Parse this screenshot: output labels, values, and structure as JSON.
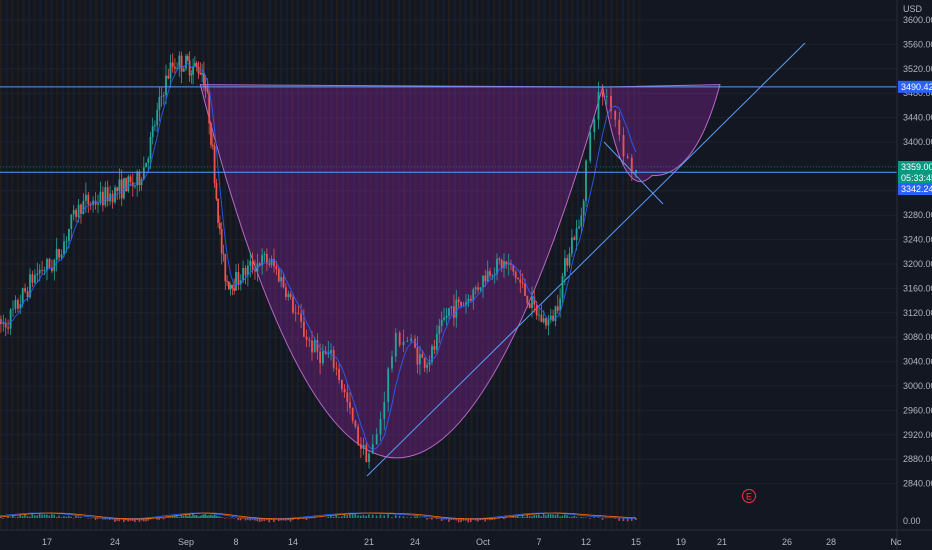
{
  "chart_data": {
    "type": "candlestick",
    "currency": "USD",
    "y_axis": {
      "ticks": [
        3600,
        3560,
        3520,
        3480,
        3440,
        3400,
        3360,
        3320,
        3280,
        3240,
        3200,
        3160,
        3120,
        3080,
        3040,
        3000,
        2960,
        2920,
        2880,
        2840
      ],
      "tick_labels": [
        "3600.00",
        "3560.00",
        "3520.00",
        "3480.00",
        "3440.00",
        "3400.00",
        "3360.00",
        "3320.00",
        "3280.00",
        "3240.00",
        "3200.00",
        "3160.00",
        "3120.00",
        "3080.00",
        "3040.00",
        "3000.00",
        "2960.00",
        "2920.00",
        "2880.00",
        "2840.00"
      ],
      "range": [
        2820,
        3612
      ]
    },
    "x_axis": {
      "labels": [
        "17",
        "24",
        "Sep",
        "8",
        "14",
        "21",
        "24",
        "Oct",
        "7",
        "12",
        "15",
        "19",
        "21",
        "26",
        "28",
        "Nc"
      ]
    },
    "price_labels": [
      {
        "text": "3490.42",
        "value": 3490.42,
        "color": "#2962ff"
      },
      {
        "text": "3359.00",
        "value": 3359.0,
        "color": "#089981"
      },
      {
        "text": "05:33:45",
        "value": 3350.5,
        "color": "#089981"
      },
      {
        "text": "3342.24",
        "value": 3342.24,
        "color": "#2962ff"
      }
    ],
    "horizontal_levels": [
      3490.42,
      3350.5
    ],
    "pattern": "cup-and-handle",
    "earnings_marker": "E",
    "indicator_label": "0.00",
    "key_points": [
      {
        "date": "Aug 12",
        "price": 3100
      },
      {
        "date": "Aug 17",
        "price": 3195
      },
      {
        "date": "Aug 21",
        "price": 3300
      },
      {
        "date": "Aug 26",
        "price": 3330
      },
      {
        "date": "Aug 31",
        "price": 3530
      },
      {
        "date": "Sep 3",
        "price": 3520
      },
      {
        "date": "Sep 7",
        "price": 3170
      },
      {
        "date": "Sep 11",
        "price": 3205
      },
      {
        "date": "Sep 17",
        "price": 3050
      },
      {
        "date": "Sep 21",
        "price": 2890
      },
      {
        "date": "Sep 23",
        "price": 3080
      },
      {
        "date": "Sep 25",
        "price": 3040
      },
      {
        "date": "Sep 28",
        "price": 3130
      },
      {
        "date": "Oct 3",
        "price": 3200
      },
      {
        "date": "Oct 8",
        "price": 3105
      },
      {
        "date": "Oct 11",
        "price": 3250
      },
      {
        "date": "Oct 13",
        "price": 3480
      },
      {
        "date": "Oct 15",
        "price": 3350
      }
    ]
  }
}
